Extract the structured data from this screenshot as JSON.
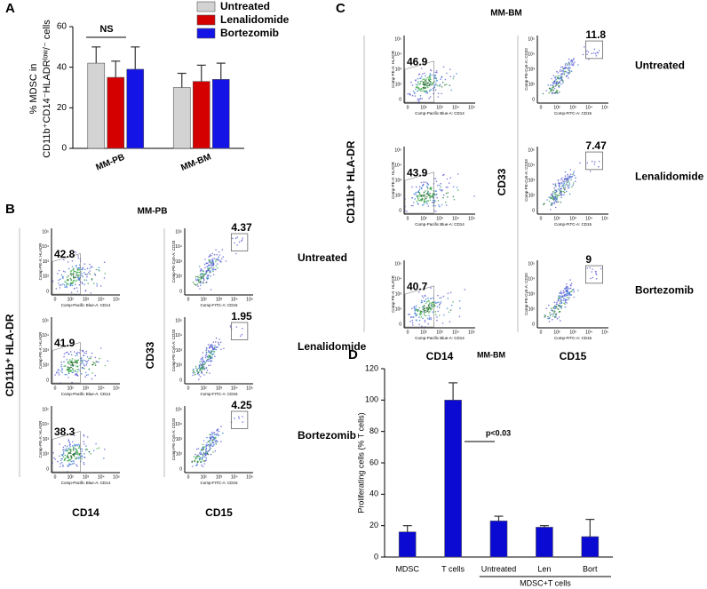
{
  "panel_letters": [
    "A",
    "B",
    "C",
    "D"
  ],
  "chart_data": [
    {
      "type": "bar",
      "categories": [
        "MM-PB",
        "MM-BM"
      ],
      "series": [
        {
          "name": "Untreated",
          "color": "#d3d3d3",
          "values": [
            42,
            30
          ],
          "errors": [
            8,
            7
          ]
        },
        {
          "name": "Lenalidomide",
          "color": "#d40000",
          "values": [
            35,
            33
          ],
          "errors": [
            8,
            8
          ]
        },
        {
          "name": "Bortezomib",
          "color": "#1414e6",
          "values": [
            39,
            34
          ],
          "errors": [
            11,
            8
          ]
        }
      ],
      "ylim": [
        0,
        60
      ],
      "yticks": [
        0,
        20,
        40,
        60
      ],
      "y_label": [
        "% MDSC in",
        "CD11b⁺CD14⁻HLADRˡᵒʷ/⁻ cells"
      ],
      "annotation": "NS",
      "legend": "upper right"
    },
    {
      "type": "bar",
      "title": "MM-BM",
      "categories": [
        "MDSC",
        "T cells",
        "Untreated",
        "Len",
        "Bort"
      ],
      "values": [
        16,
        100,
        23,
        19,
        13
      ],
      "errors": [
        4,
        11,
        3,
        1,
        11
      ],
      "color": "#0a0ad2",
      "ylim": [
        0,
        120
      ],
      "yticks": [
        0,
        20,
        40,
        60,
        80,
        100,
        120
      ],
      "y_label": "Proliferating cells (% T cells)",
      "annotation": "p<0.03",
      "group_label": "MDSC+T cells"
    }
  ],
  "flow": {
    "ticks": [
      "0",
      "10²",
      "10³",
      "10⁴",
      "10⁵"
    ],
    "axis_texts": {
      "hladr": "Comp-PE-A: HLADR",
      "cd14": "Comp-Pacific Blue-A: CD14",
      "cd33": "Comp-PE-Cy5-A: CD33",
      "cd15": "Comp-FITC-A: CD15"
    },
    "panels": [
      {
        "title": "MM-PB",
        "x_left": "CD14",
        "x_right": "CD15",
        "y_left": "CD11b⁺ HLA-DR",
        "y_right": "CD33",
        "treatments": [
          "Untreated",
          "Lenalidomide",
          "Bortezomib"
        ],
        "left_gates": [
          42.8,
          41.9,
          38.3
        ],
        "right_gates": [
          4.37,
          1.95,
          4.25
        ]
      },
      {
        "title": "MM-BM",
        "x_left": "CD14",
        "x_right": "CD15",
        "y_left": "CD11b⁺ HLA-DR",
        "y_right": "CD33",
        "treatments": [
          "Untreated",
          "Lenalidomide",
          "Bortezomib"
        ],
        "left_gates": [
          46.9,
          43.9,
          40.7
        ],
        "right_gates": [
          11.8,
          7.47,
          9
        ]
      }
    ]
  }
}
